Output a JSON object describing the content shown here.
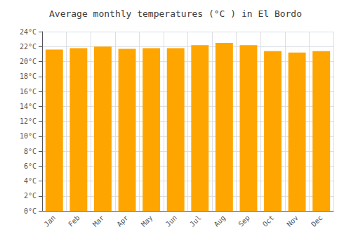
{
  "chart_data": {
    "type": "bar",
    "title": "Average monthly temperatures (°C ) in El Bordo",
    "categories": [
      "Jan",
      "Feb",
      "Mar",
      "Apr",
      "May",
      "Jun",
      "Jul",
      "Aug",
      "Sep",
      "Oct",
      "Nov",
      "Dec"
    ],
    "values": [
      21.6,
      21.8,
      22.0,
      21.7,
      21.8,
      21.8,
      22.2,
      22.5,
      22.2,
      21.4,
      21.2,
      21.4
    ],
    "color": "#FFA500",
    "ylim": [
      0,
      24
    ],
    "yticks": [
      {
        "value": 0,
        "label": "0°C"
      },
      {
        "value": 2,
        "label": "2°C"
      },
      {
        "value": 4,
        "label": "4°C"
      },
      {
        "value": 6,
        "label": "6°C"
      },
      {
        "value": 8,
        "label": "8°C"
      },
      {
        "value": 10,
        "label": "10°C"
      },
      {
        "value": 12,
        "label": "12°C"
      },
      {
        "value": 14,
        "label": "14°C"
      },
      {
        "value": 16,
        "label": "16°C"
      },
      {
        "value": 18,
        "label": "18°C"
      },
      {
        "value": 20,
        "label": "20°C"
      },
      {
        "value": 22,
        "label": "22°C"
      },
      {
        "value": 24,
        "label": "24°C"
      }
    ],
    "grid": true
  }
}
